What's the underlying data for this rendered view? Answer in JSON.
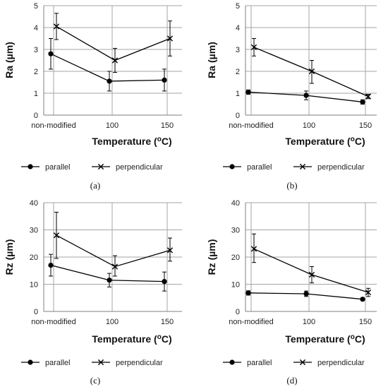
{
  "chart_data": [
    {
      "type": "line",
      "panel_label": "(a)",
      "categories": [
        "non-modified",
        "100",
        "150"
      ],
      "xlabel": "Temperature (°C)",
      "ylabel": "Ra (µm)",
      "ylim": [
        0,
        5
      ],
      "yticks": [
        0,
        1,
        2,
        3,
        4,
        5
      ],
      "grid": true,
      "legend_position": "bottom",
      "series": [
        {
          "name": "parallel",
          "marker": "circle",
          "values": [
            2.8,
            1.55,
            1.6
          ],
          "err_low": [
            2.1,
            1.1,
            1.1
          ],
          "err_high": [
            3.5,
            2.0,
            2.1
          ]
        },
        {
          "name": "perpendicular",
          "marker": "x",
          "values": [
            4.05,
            2.5,
            3.5
          ],
          "err_low": [
            3.45,
            1.95,
            2.7
          ],
          "err_high": [
            4.65,
            3.05,
            4.3
          ]
        }
      ]
    },
    {
      "type": "line",
      "panel_label": "(b)",
      "categories": [
        "non-modified",
        "100",
        "150"
      ],
      "xlabel": "Temperature (°C)",
      "ylabel": "Ra (µm)",
      "ylim": [
        0,
        5
      ],
      "yticks": [
        0,
        1,
        2,
        3,
        4,
        5
      ],
      "grid": true,
      "legend_position": "bottom",
      "series": [
        {
          "name": "parallel",
          "marker": "circle",
          "values": [
            1.05,
            0.9,
            0.6
          ],
          "err_low": [
            0.95,
            0.7,
            0.5
          ],
          "err_high": [
            1.15,
            1.1,
            0.7
          ]
        },
        {
          "name": "perpendicular",
          "marker": "x",
          "values": [
            3.1,
            2.0,
            0.85
          ],
          "err_low": [
            2.7,
            1.45,
            0.75
          ],
          "err_high": [
            3.5,
            2.5,
            0.95
          ]
        }
      ]
    },
    {
      "type": "line",
      "panel_label": "(c)",
      "categories": [
        "non-modified",
        "100",
        "150"
      ],
      "xlabel": "Temperature (°C)",
      "ylabel": "Rz (µm)",
      "ylim": [
        0,
        40
      ],
      "yticks": [
        0,
        10,
        20,
        30,
        40
      ],
      "grid": true,
      "legend_position": "bottom",
      "series": [
        {
          "name": "parallel",
          "marker": "circle",
          "values": [
            17,
            11.5,
            11
          ],
          "err_low": [
            13,
            9,
            7.5
          ],
          "err_high": [
            21,
            14,
            14.5
          ]
        },
        {
          "name": "perpendicular",
          "marker": "x",
          "values": [
            28,
            16.5,
            22.5
          ],
          "err_low": [
            19.5,
            13,
            18.5
          ],
          "err_high": [
            36.5,
            20.5,
            27
          ]
        }
      ]
    },
    {
      "type": "line",
      "panel_label": "(d)",
      "categories": [
        "non-modified",
        "100",
        "150"
      ],
      "xlabel": "Temperature (°C)",
      "ylabel": "Rz (µm)",
      "ylim": [
        0,
        40
      ],
      "yticks": [
        0,
        10,
        20,
        30,
        40
      ],
      "grid": true,
      "legend_position": "bottom",
      "series": [
        {
          "name": "parallel",
          "marker": "circle",
          "values": [
            6.8,
            6.5,
            4.5
          ],
          "err_low": [
            6.0,
            5.5,
            4.0
          ],
          "err_high": [
            7.6,
            7.5,
            5.0
          ]
        },
        {
          "name": "perpendicular",
          "marker": "x",
          "values": [
            23,
            13.5,
            7
          ],
          "err_low": [
            18,
            10.5,
            5.5
          ],
          "err_high": [
            28.5,
            16.5,
            8.5
          ]
        }
      ]
    }
  ]
}
